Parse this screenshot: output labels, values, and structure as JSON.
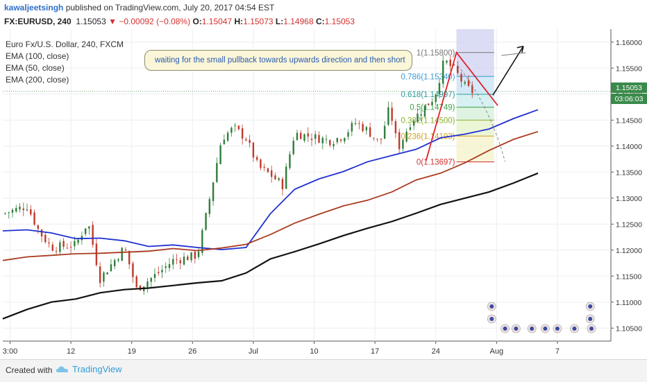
{
  "header": {
    "user": "kawaljeetsingh",
    "published": " published on TradingView.com, July 20, 2017 04:54 EST"
  },
  "ohlc": {
    "symbol": "FX:EURUSD, 240",
    "last": "1.15053",
    "change": "−0.00092 (−0.08%)",
    "o_label": "O:",
    "o": "1.15047",
    "h_label": "H:",
    "h": "1.15073",
    "l_label": "L:",
    "l": "1.14968",
    "c_label": "C:",
    "c": "1.15053"
  },
  "legend": [
    "Euro Fx/U.S. Dollar, 240, FXCM",
    "EMA (100, close)",
    "EMA (50, close)",
    "EMA (200, close)"
  ],
  "annotation": "waiting for the small pullback towards upwards direction  and then short",
  "price_tags": {
    "last": "1.15053",
    "countdown": "03:06:03"
  },
  "footer": {
    "created_with": "Created with",
    "brand": "TradingView"
  },
  "colors": {
    "up": "#2f7d3a",
    "down": "#c0392b",
    "ema50": "#1f2fd0",
    "ema100": "#a93a20",
    "ema200": "#111111",
    "trend": "#e0202a",
    "fib_band_top": "#cfd2f0",
    "fib_band_bottom": "#f4c7c7"
  },
  "chart_data": {
    "type": "line",
    "x_ticks": [
      "3:00",
      "12",
      "19",
      "26",
      "Jul",
      "10",
      "17",
      "24",
      "Aug",
      "7"
    ],
    "y_ticks": [
      "1.16000",
      "1.15500",
      "1.15000",
      "1.14500",
      "1.14000",
      "1.13500",
      "1.13000",
      "1.12500",
      "1.12000",
      "1.11500",
      "1.11000",
      "1.10500"
    ],
    "ylim": [
      1.1025,
      1.1625
    ],
    "xlim": [
      0,
      50
    ],
    "series": [
      {
        "name": "EMA (50, close)",
        "x": [
          0,
          2,
          4,
          6,
          8,
          10,
          12,
          14,
          16,
          18,
          20,
          22,
          24,
          26,
          28,
          30,
          32,
          34,
          36,
          38,
          40,
          42,
          44,
          46,
          48,
          50
        ],
        "y": [
          1.1237,
          1.1239,
          1.1233,
          1.1222,
          1.1223,
          1.1218,
          1.1207,
          1.121,
          1.1205,
          1.1201,
          1.1205,
          1.127,
          1.1317,
          1.1337,
          1.1351,
          1.137,
          1.1382,
          1.1394,
          1.1416,
          1.1423,
          1.1433,
          1.1453,
          1.147,
          null,
          null,
          null
        ]
      },
      {
        "name": "EMA (100, close)",
        "x": [
          0,
          2,
          4,
          6,
          8,
          10,
          12,
          14,
          16,
          18,
          20,
          22,
          24,
          26,
          28,
          30,
          32,
          34,
          36,
          38,
          40,
          42,
          44,
          46,
          48,
          50
        ],
        "y": [
          1.118,
          1.1187,
          1.119,
          1.1193,
          1.1194,
          1.1196,
          1.1198,
          1.1203,
          1.1199,
          1.1204,
          1.1211,
          1.123,
          1.1252,
          1.1269,
          1.1285,
          1.1296,
          1.1312,
          1.1335,
          1.1348,
          1.1368,
          1.1392,
          1.1413,
          1.1428,
          null,
          null,
          null
        ]
      },
      {
        "name": "EMA (200, close)",
        "x": [
          0,
          2,
          4,
          6,
          8,
          10,
          12,
          14,
          16,
          18,
          20,
          22,
          24,
          26,
          28,
          30,
          32,
          34,
          36,
          38,
          40,
          42,
          44,
          46,
          48,
          50
        ],
        "y": [
          1.1068,
          1.1086,
          1.11,
          1.1106,
          1.1118,
          1.1124,
          1.1127,
          1.1132,
          1.1137,
          1.1141,
          1.1156,
          1.1183,
          1.1197,
          1.1212,
          1.1228,
          1.1242,
          1.1255,
          1.1271,
          1.1288,
          1.13,
          1.1312,
          1.1329,
          1.1348,
          null,
          null,
          null
        ]
      }
    ],
    "fibonacci": [
      {
        "label": "1(1.15800)",
        "value": 1.158
      },
      {
        "label": "0.786(1.15340)",
        "value": 1.1534
      },
      {
        "label": "0.618(1.14997)",
        "value": 1.14997
      },
      {
        "label": "0.5(1.14749)",
        "value": 1.14749
      },
      {
        "label": "0.382(1.14500)",
        "value": 1.145
      },
      {
        "label": "0.236(1.14193)",
        "value": 1.14193
      },
      {
        "label": "0(1.13697)",
        "value": 1.13697
      }
    ],
    "grid": true,
    "legend_position": "top-left"
  }
}
